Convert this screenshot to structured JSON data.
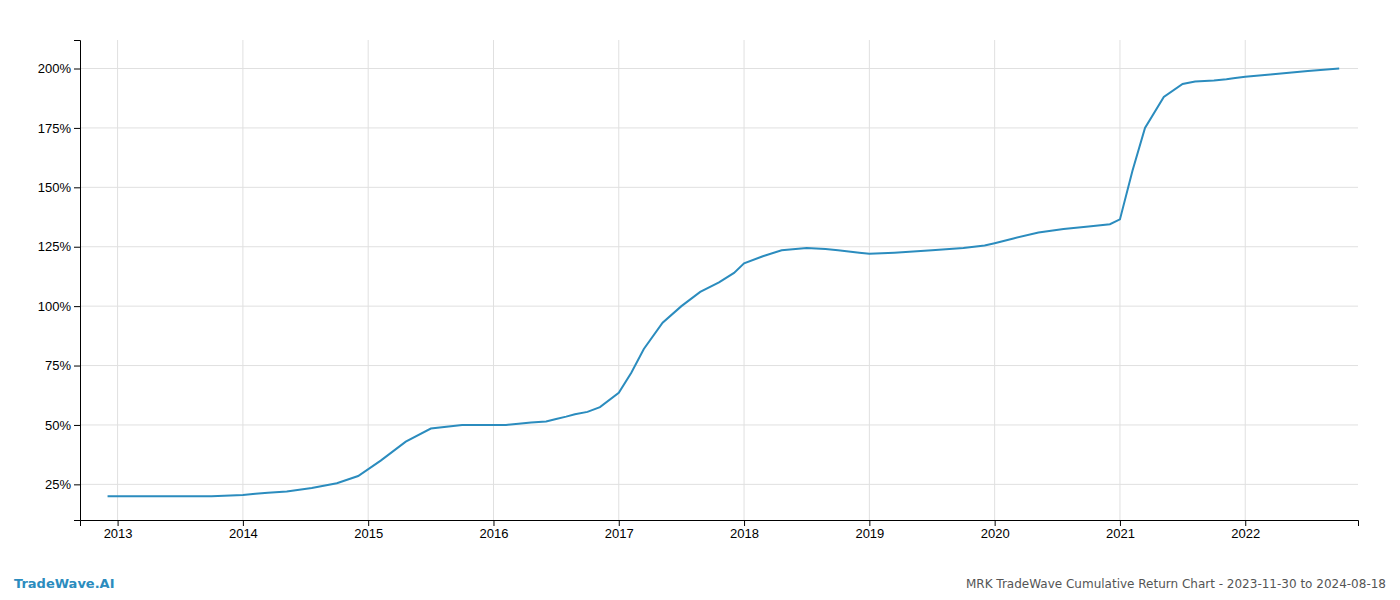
{
  "chart_data": {
    "type": "line",
    "title": "MRK TradeWave Cumulative Return Chart - 2023-11-30 to 2024-08-18",
    "annotations": [
      "TradeWave.AI"
    ],
    "color": "#2b8cbe",
    "grid": true,
    "x": [
      2012.92,
      2013.0,
      2013.25,
      2013.5,
      2013.75,
      2014.0,
      2014.1,
      2014.2,
      2014.35,
      2014.55,
      2014.75,
      2014.92,
      2015.1,
      2015.3,
      2015.5,
      2015.75,
      2015.92,
      2016.1,
      2016.2,
      2016.3,
      2016.42,
      2016.5,
      2016.58,
      2016.65,
      2016.75,
      2016.85,
      2017.0,
      2017.1,
      2017.2,
      2017.35,
      2017.5,
      2017.65,
      2017.8,
      2017.92,
      2018.0,
      2018.15,
      2018.3,
      2018.5,
      2018.65,
      2018.75,
      2018.92,
      2019.0,
      2019.2,
      2019.5,
      2019.75,
      2019.92,
      2020.0,
      2020.15,
      2020.35,
      2020.55,
      2020.75,
      2020.92,
      2021.0,
      2021.1,
      2021.2,
      2021.35,
      2021.5,
      2021.6,
      2021.75,
      2021.85,
      2021.92,
      2022.0,
      2022.2,
      2022.5,
      2022.75
    ],
    "values": [
      0.2,
      0.2,
      0.2,
      0.2,
      0.2,
      0.205,
      0.21,
      0.215,
      0.22,
      0.235,
      0.255,
      0.285,
      0.35,
      0.43,
      0.485,
      0.5,
      0.5,
      0.5,
      0.505,
      0.51,
      0.515,
      0.525,
      0.535,
      0.545,
      0.555,
      0.575,
      0.635,
      0.72,
      0.82,
      0.93,
      1.0,
      1.06,
      1.1,
      1.14,
      1.18,
      1.21,
      1.235,
      1.245,
      1.24,
      1.235,
      1.225,
      1.22,
      1.225,
      1.235,
      1.245,
      1.255,
      1.265,
      1.285,
      1.31,
      1.325,
      1.335,
      1.345,
      1.365,
      1.57,
      1.75,
      1.88,
      1.935,
      1.945,
      1.95,
      1.955,
      1.96,
      1.965,
      1.975,
      1.99,
      2.0
    ],
    "xlim": [
      2012.7,
      2022.9
    ],
    "ylim": [
      0.1,
      2.12
    ],
    "xticks": [
      2013,
      2014,
      2015,
      2016,
      2017,
      2018,
      2019,
      2020,
      2021,
      2022
    ],
    "yticks": [
      {
        "value": 0.25,
        "label": "25%"
      },
      {
        "value": 0.5,
        "label": "50%"
      },
      {
        "value": 0.75,
        "label": "75%"
      },
      {
        "value": 1.0,
        "label": "100%"
      },
      {
        "value": 1.25,
        "label": "125%"
      },
      {
        "value": 1.5,
        "label": "150%"
      },
      {
        "value": 1.75,
        "label": "175%"
      },
      {
        "value": 2.0,
        "label": "200%"
      }
    ]
  }
}
